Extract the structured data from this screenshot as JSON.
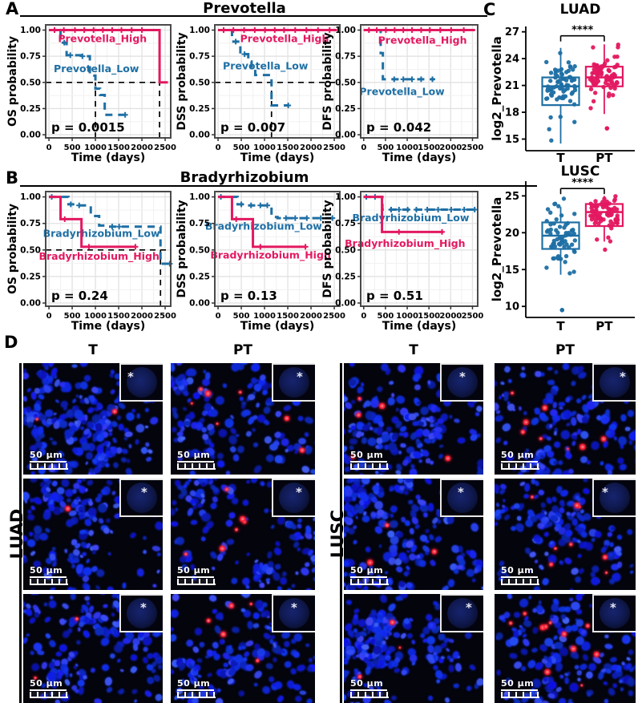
{
  "figure": {
    "panel_labels": {
      "a": "A",
      "b": "B",
      "c": "C",
      "d": "D"
    },
    "colors": {
      "high": "#E31860",
      "low": "#1E6FA4",
      "grid_major": "#e2e2e2",
      "grid_minor": "#f1f1f1",
      "axis": "#4a4a4a",
      "micro_bg": "#04040c",
      "micro_blue": "#1e2fe0",
      "micro_red": "#ff2038"
    }
  },
  "chart_data": {
    "km_xlabel": "Time (days)",
    "km_xticks": [
      0,
      500,
      1000,
      1500,
      2000,
      2500
    ],
    "km_yticks": [
      "0.00",
      "0.25",
      "0.50",
      "0.75",
      "1.00"
    ],
    "km_xlim": [
      -70,
      2620
    ],
    "km_ylim": [
      -0.03,
      1.05
    ],
    "km_rows": [
      {
        "panel": "A",
        "title": "Prevotella",
        "plots": [
          {
            "type": "km",
            "ylabel": "OS probability",
            "p": "p = 0.0015",
            "high": {
              "label": "Prevotella_High",
              "steps": [
                [
                  0,
                  1
                ],
                [
                  2380,
                  1
                ],
                [
                  2380,
                  0.5
                ],
                [
                  2560,
                  0.5
                ]
              ],
              "censors": [
                120,
                320,
                560,
                760,
                960,
                1160,
                1360,
                1560,
                1780,
                2000
              ],
              "label_at": [
                1150,
                0.915
              ]
            },
            "low": {
              "label": "Prevotella_Low",
              "steps": [
                [
                  0,
                  1
                ],
                [
                  250,
                  1
                ],
                [
                  250,
                  0.88
                ],
                [
                  380,
                  0.88
                ],
                [
                  380,
                  0.76
                ],
                [
                  700,
                  0.76
                ],
                [
                  700,
                  0.75
                ],
                [
                  880,
                  0.75
                ],
                [
                  880,
                  0.565
                ],
                [
                  1000,
                  0.565
                ],
                [
                  1000,
                  0.44
                ],
                [
                  1100,
                  0.44
                ],
                [
                  1100,
                  0.38
                ],
                [
                  1200,
                  0.38
                ],
                [
                  1200,
                  0.19
                ],
                [
                  1660,
                  0.19
                ]
              ],
              "censors": [
                330,
                460,
                720,
                1640
              ],
              "label_at": [
                1020,
                0.63
              ]
            },
            "ref_h": 0.5,
            "ref_v": [
              1000,
              2380
            ]
          },
          {
            "type": "km",
            "ylabel": "DSS probability",
            "p": "p = 0.007",
            "high": {
              "label": "Prevotella_High",
              "steps": [
                [
                  0,
                  1
                ],
                [
                  2560,
                  1
                ]
              ],
              "censors": [
                120,
                330,
                560,
                790,
                1010,
                1220,
                1420,
                1660,
                1900,
                2150,
                2400
              ],
              "label_at": [
                1430,
                0.915
              ]
            },
            "low": {
              "label": "Prevotella_Low",
              "steps": [
                [
                  0,
                  1
                ],
                [
                  300,
                  1
                ],
                [
                  300,
                  0.89
                ],
                [
                  480,
                  0.89
                ],
                [
                  480,
                  0.77
                ],
                [
                  650,
                  0.77
                ],
                [
                  650,
                  0.7
                ],
                [
                  720,
                  0.7
                ],
                [
                  720,
                  0.63
                ],
                [
                  800,
                  0.63
                ],
                [
                  800,
                  0.57
                ],
                [
                  1150,
                  0.57
                ],
                [
                  1150,
                  0.28
                ],
                [
                  1530,
                  0.28
                ]
              ],
              "censors": [
                380,
                570,
                1510
              ],
              "label_at": [
                1020,
                0.655
              ]
            },
            "ref_h": 0.5,
            "ref_v": [
              1150
            ]
          },
          {
            "type": "km",
            "ylabel": "DFS probability",
            "p": "p = 0.042",
            "high": {
              "label": "Prevotella_High",
              "steps": [
                [
                  0,
                  1
                ],
                [
                  2560,
                  1
                ]
              ],
              "censors": [
                120,
                300,
                510,
                710,
                910,
                1110,
                1320,
                1520,
                1760,
                2010,
                2300
              ],
              "label_at": [
                1350,
                0.9
              ]
            },
            "low": {
              "label": "Prevotella_Low",
              "steps": [
                [
                  0,
                  1
                ],
                [
                  390,
                  1
                ],
                [
                  390,
                  0.78
                ],
                [
                  440,
                  0.78
                ],
                [
                  440,
                  0.53
                ],
                [
                  1630,
                  0.53
                ]
              ],
              "censors": [
                700,
                910,
                1110,
                1320,
                1580
              ],
              "label_at": [
                880,
                0.41
              ]
            },
            "ref_h": null,
            "ref_v": []
          }
        ]
      },
      {
        "panel": "B",
        "title": "Bradyrhizobium",
        "plots": [
          {
            "type": "km",
            "ylabel": "OS probability",
            "p": "p = 0.24",
            "high": {
              "label": "Bradyrhizobium_High",
              "steps": [
                [
                  0,
                  1
                ],
                [
                  250,
                  1
                ],
                [
                  250,
                  0.79
                ],
                [
                  700,
                  0.79
                ],
                [
                  700,
                  0.53
                ],
                [
                  1880,
                  0.53
                ]
              ],
              "censors": [
                340,
                860,
                1860
              ],
              "label_at": [
                1080,
                0.44
              ]
            },
            "low": {
              "label": "Bradyrhizobium_Low",
              "steps": [
                [
                  0,
                  1
                ],
                [
                  420,
                  1
                ],
                [
                  420,
                  0.93
                ],
                [
                  560,
                  0.93
                ],
                [
                  560,
                  0.92
                ],
                [
                  900,
                  0.92
                ],
                [
                  900,
                  0.82
                ],
                [
                  1080,
                  0.82
                ],
                [
                  1080,
                  0.73
                ],
                [
                  1250,
                  0.73
                ],
                [
                  1250,
                  0.72
                ],
                [
                  2400,
                  0.72
                ],
                [
                  2400,
                  0.37
                ],
                [
                  2620,
                  0.37
                ]
              ],
              "censors": [
                60,
                470,
                650,
                1360,
                1510,
                2600
              ],
              "label_at": [
                1130,
                0.655
              ]
            },
            "ref_h": 0.5,
            "ref_v": [
              2400
            ]
          },
          {
            "type": "km",
            "ylabel": "DSS probability",
            "p": "p = 0.13",
            "high": {
              "label": "Bradyrhizobium_High",
              "steps": [
                [
                  0,
                  1
                ],
                [
                  300,
                  1
                ],
                [
                  300,
                  0.79
                ],
                [
                  750,
                  0.79
                ],
                [
                  750,
                  0.53
                ],
                [
                  1900,
                  0.53
                ]
              ],
              "censors": [
                390,
                910,
                1880
              ],
              "label_at": [
                1130,
                0.45
              ]
            },
            "low": {
              "label": "Bradyrhizobium_Low",
              "steps": [
                [
                  0,
                  1
                ],
                [
                  420,
                  1
                ],
                [
                  420,
                  0.93
                ],
                [
                  600,
                  0.93
                ],
                [
                  600,
                  0.92
                ],
                [
                  1150,
                  0.92
                ],
                [
                  1150,
                  0.81
                ],
                [
                  1280,
                  0.81
                ],
                [
                  1280,
                  0.8
                ],
                [
                  2560,
                  0.8
                ]
              ],
              "censors": [
                60,
                500,
                710,
                910,
                1060,
                1460,
                1660,
                1910,
                2210,
                2460
              ],
              "label_at": [
                980,
                0.72
              ]
            },
            "ref_h": null,
            "ref_v": []
          },
          {
            "type": "km",
            "ylabel": "DFS probability",
            "p": "p = 0.51",
            "high": {
              "label": "Bradyrhizobium_High",
              "steps": [
                [
                  0,
                  1
                ],
                [
                  420,
                  1
                ],
                [
                  420,
                  0.67
                ],
                [
                  1830,
                  0.67
                ]
              ],
              "censors": [
                810,
                1800
              ],
              "label_at": [
                950,
                0.56
              ]
            },
            "low": {
              "label": "Bradyrhizobium_Low",
              "steps": [
                [
                  0,
                  1
                ],
                [
                  430,
                  1
                ],
                [
                  430,
                  0.88
                ],
                [
                  2570,
                  0.88
                ]
              ],
              "censors": [
                60,
                260,
                630,
                810,
                1010,
                1210,
                1460,
                1710,
                2010,
                2310,
                2550
              ],
              "label_at": [
                1080,
                0.8
              ]
            },
            "ref_h": null,
            "ref_v": []
          }
        ]
      }
    ],
    "boxplots": [
      {
        "type": "box",
        "title": "LUAD",
        "ylabel": "log2_Prevotella",
        "sig": "****",
        "yticks": [
          15,
          18,
          21,
          24,
          27
        ],
        "ylim": [
          13.7,
          27.6
        ],
        "sig_y": 26.55,
        "groups": [
          {
            "name": "T",
            "color": "low",
            "q1": 18.8,
            "med": 20.9,
            "q3": 21.9,
            "wlo": 14.5,
            "whi": 25.2,
            "n": 72,
            "pmin": 14.4,
            "pmax": 25.5,
            "outliers": []
          },
          {
            "name": "PT",
            "color": "high",
            "q1": 20.9,
            "med": 21.9,
            "q3": 23.1,
            "wlo": 17.8,
            "whi": 25.6,
            "n": 80,
            "pmin": 16.2,
            "pmax": 25.8,
            "outliers": [
              16.2
            ]
          }
        ]
      },
      {
        "type": "box",
        "title": "LUSC",
        "ylabel": "log2_Prevotella",
        "sig": "****",
        "yticks": [
          10,
          15,
          20,
          25
        ],
        "ylim": [
          8.5,
          27.0
        ],
        "sig_y": 26.0,
        "groups": [
          {
            "name": "T",
            "color": "low",
            "q1": 17.8,
            "med": 19.6,
            "q3": 21.4,
            "wlo": 14.3,
            "whi": 23.5,
            "n": 66,
            "pmin": 14.0,
            "pmax": 24.9,
            "outliers": [
              9.5
            ]
          },
          {
            "name": "PT",
            "color": "high",
            "q1": 20.9,
            "med": 22.8,
            "q3": 23.9,
            "wlo": 18.8,
            "whi": 25.0,
            "n": 74,
            "pmin": 17.5,
            "pmax": 25.4,
            "outliers": []
          }
        ]
      }
    ]
  },
  "panel_d": {
    "columns": [
      "T",
      "PT",
      "T",
      "PT"
    ],
    "groups": [
      "LUAD",
      "LUSC"
    ],
    "scalebar_label": "50 µm",
    "inset_mark": "*",
    "images": [
      {
        "id": "luad-t-1",
        "red": 2,
        "seed": 11,
        "star": 0.2,
        "density": 1.25
      },
      {
        "id": "luad-pt-1",
        "red": 7,
        "seed": 22,
        "star": 0.72,
        "density": 0.8
      },
      {
        "id": "lusc-t-1",
        "red": 5,
        "seed": 33,
        "star": 0.55,
        "density": 1.0
      },
      {
        "id": "lusc-pt-1",
        "red": 9,
        "seed": 44,
        "star": 0.8,
        "density": 1.0
      },
      {
        "id": "luad-t-2",
        "red": 2,
        "seed": 55,
        "star": 0.62,
        "density": 1.05
      },
      {
        "id": "luad-pt-2",
        "red": 6,
        "seed": 66,
        "star": 0.7,
        "density": 0.9
      },
      {
        "id": "lusc-t-2",
        "red": 3,
        "seed": 77,
        "star": 0.5,
        "density": 1.15
      },
      {
        "id": "lusc-pt-2",
        "red": 8,
        "seed": 88,
        "star": 0.25,
        "density": 0.95
      },
      {
        "id": "luad-t-3",
        "red": 2,
        "seed": 99,
        "star": 0.6,
        "density": 0.95
      },
      {
        "id": "luad-pt-3",
        "red": 5,
        "seed": 110,
        "star": 0.55,
        "density": 0.9
      },
      {
        "id": "lusc-t-3",
        "red": 3,
        "seed": 121,
        "star": 0.75,
        "density": 1.2
      },
      {
        "id": "lusc-pt-3",
        "red": 12,
        "seed": 132,
        "star": 0.5,
        "density": 0.9
      }
    ]
  }
}
